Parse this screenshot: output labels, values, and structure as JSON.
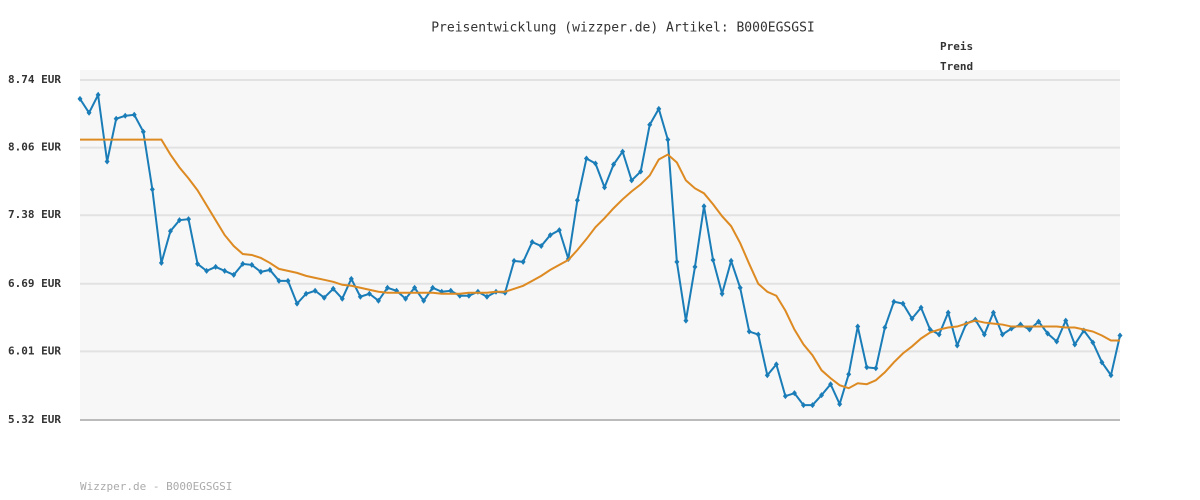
{
  "chart_data": {
    "type": "line",
    "title": "Preisentwicklung (wizzper.de) Artikel: B000EGSGSI",
    "ylim": [
      5.32,
      8.74
    ],
    "yticks": [
      {
        "value": 5.32,
        "label": "5.32 EUR"
      },
      {
        "value": 6.01,
        "label": "6.01 EUR"
      },
      {
        "value": 6.69,
        "label": "6.69 EUR"
      },
      {
        "value": 7.38,
        "label": "7.38 EUR"
      },
      {
        "value": 8.06,
        "label": "8.06 EUR"
      },
      {
        "value": 8.74,
        "label": "8.74 EUR"
      }
    ],
    "grid": true,
    "legend": "top-right",
    "series": [
      {
        "name": "Preis",
        "color": "#1a7db8",
        "markers": true,
        "values": [
          8.55,
          8.41,
          8.59,
          7.92,
          8.35,
          8.38,
          8.39,
          8.22,
          7.64,
          6.9,
          7.22,
          7.33,
          7.34,
          6.89,
          6.82,
          6.86,
          6.82,
          6.78,
          6.89,
          6.88,
          6.81,
          6.83,
          6.72,
          6.72,
          6.49,
          6.59,
          6.62,
          6.55,
          6.64,
          6.54,
          6.74,
          6.56,
          6.59,
          6.52,
          6.65,
          6.62,
          6.54,
          6.65,
          6.52,
          6.65,
          6.61,
          6.62,
          6.57,
          6.57,
          6.61,
          6.56,
          6.61,
          6.6,
          6.92,
          6.91,
          7.11,
          7.07,
          7.18,
          7.23,
          6.94,
          7.53,
          7.95,
          7.9,
          7.66,
          7.89,
          8.02,
          7.73,
          7.82,
          8.29,
          8.45,
          8.14,
          6.91,
          6.32,
          6.86,
          7.47,
          6.93,
          6.59,
          6.92,
          6.65,
          6.21,
          6.18,
          5.77,
          5.88,
          5.56,
          5.59,
          5.47,
          5.47,
          5.57,
          5.68,
          5.48,
          5.78,
          6.26,
          5.85,
          5.84,
          6.25,
          6.51,
          6.49,
          6.34,
          6.45,
          6.23,
          6.18,
          6.4,
          6.07,
          6.29,
          6.33,
          6.18,
          6.4,
          6.18,
          6.24,
          6.28,
          6.23,
          6.31,
          6.19,
          6.11,
          6.32,
          6.08,
          6.22,
          6.1,
          5.9,
          5.77,
          6.17
        ]
      },
      {
        "name": "Trend",
        "color": "#dd8a22",
        "markers": false,
        "values": [
          8.14,
          8.14,
          8.14,
          8.14,
          8.14,
          8.14,
          8.14,
          8.14,
          8.14,
          8.14,
          7.99,
          7.86,
          7.75,
          7.63,
          7.48,
          7.33,
          7.18,
          7.07,
          6.99,
          6.98,
          6.95,
          6.9,
          6.84,
          6.82,
          6.8,
          6.77,
          6.75,
          6.73,
          6.71,
          6.68,
          6.67,
          6.65,
          6.63,
          6.61,
          6.6,
          6.6,
          6.6,
          6.6,
          6.6,
          6.6,
          6.59,
          6.59,
          6.59,
          6.6,
          6.6,
          6.6,
          6.61,
          6.61,
          6.64,
          6.67,
          6.72,
          6.77,
          6.83,
          6.88,
          6.93,
          7.03,
          7.14,
          7.26,
          7.35,
          7.45,
          7.54,
          7.62,
          7.69,
          7.78,
          7.94,
          7.99,
          7.91,
          7.73,
          7.65,
          7.6,
          7.49,
          7.37,
          7.27,
          7.1,
          6.89,
          6.69,
          6.61,
          6.57,
          6.42,
          6.23,
          6.08,
          5.97,
          5.82,
          5.74,
          5.67,
          5.64,
          5.69,
          5.68,
          5.72,
          5.8,
          5.9,
          5.99,
          6.06,
          6.14,
          6.2,
          6.23,
          6.25,
          6.26,
          6.29,
          6.32,
          6.3,
          6.29,
          6.28,
          6.26,
          6.26,
          6.26,
          6.26,
          6.26,
          6.26,
          6.25,
          6.25,
          6.23,
          6.21,
          6.17,
          6.12,
          6.12
        ]
      }
    ]
  },
  "footer": "Wizzper.de - B000EGSGSI"
}
